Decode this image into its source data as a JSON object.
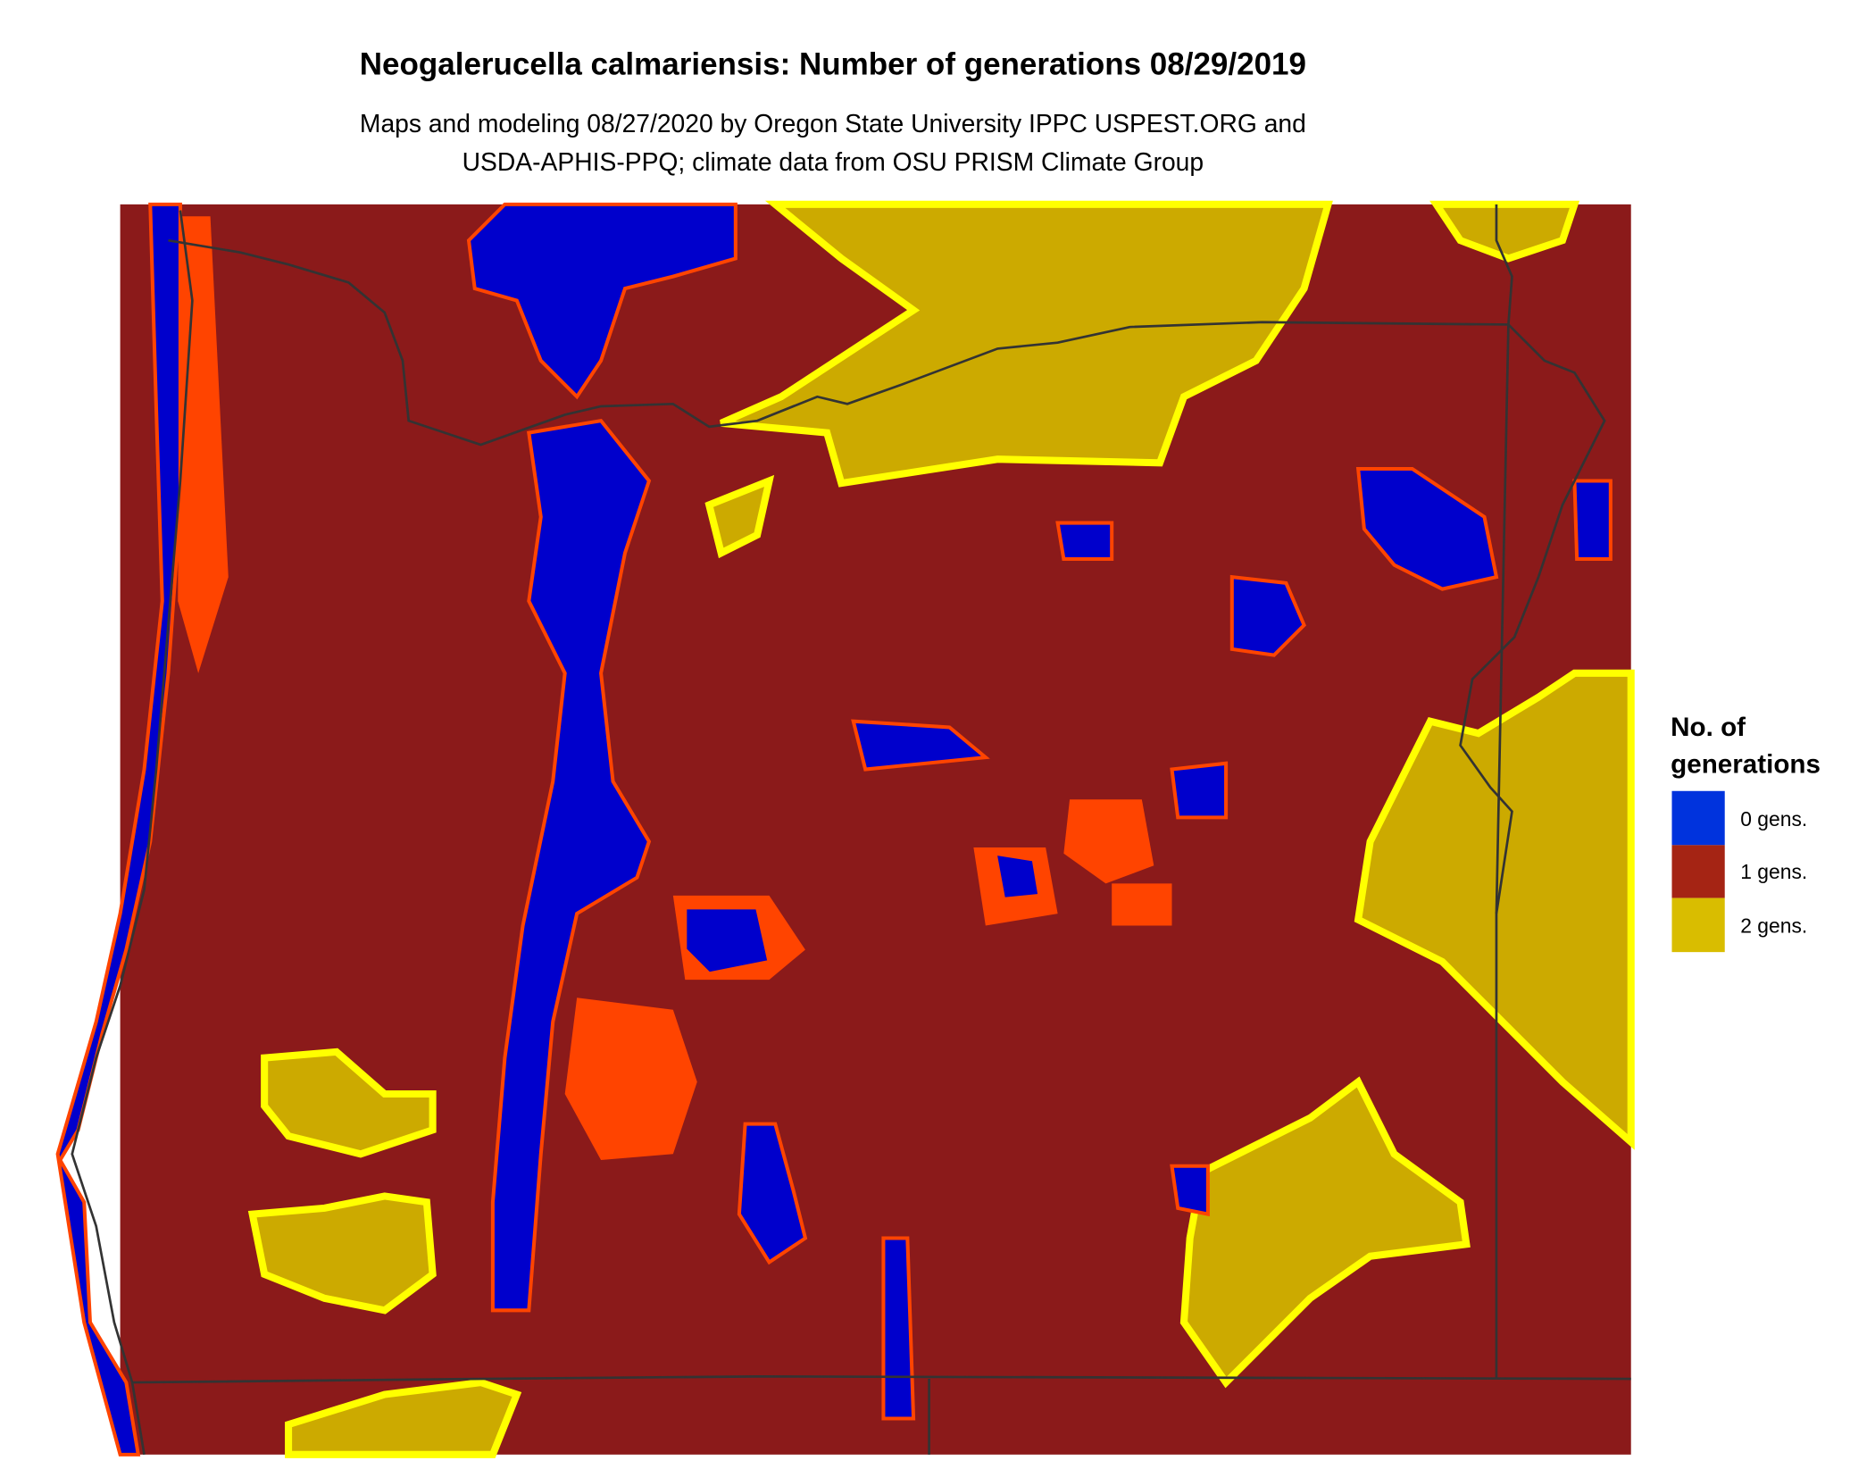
{
  "title": "Neogalerucella calmariensis: Number of generations 08/29/2019",
  "subtitle_lines": [
    "Maps and modeling 08/27/2020 by Oregon State University IPPC USPEST.ORG and",
    "USDA-APHIS-PPQ; climate data from OSU PRISM Climate Group"
  ],
  "legend": {
    "title_lines": [
      "No. of",
      "generations"
    ],
    "items": [
      {
        "label": "0 gens.",
        "color": "#0033dd"
      },
      {
        "label": "1 gens.",
        "color": "#a52414"
      },
      {
        "label": "2 gens.",
        "color": "#d9bd00"
      }
    ]
  },
  "map_colors": {
    "zero_gens": "#0000cc",
    "one_gen": "#8b1a1a",
    "two_gens": "#ccaa00",
    "two_gens_edge": "#ffff00",
    "transition": "#ff4400",
    "boundary": "#333333"
  }
}
